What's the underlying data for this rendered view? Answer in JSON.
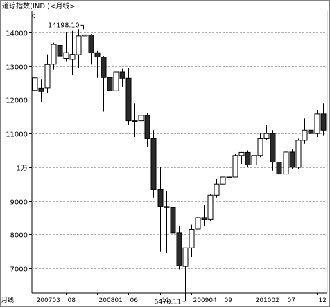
{
  "chart_data": {
    "type": "candlestick",
    "title": "道琼指数(INDI)<月线>",
    "unit_label": "K",
    "x_axis_prefix": "月线",
    "y_ticks": [
      {
        "value": 14000,
        "label": "14000"
      },
      {
        "value": 13000,
        "label": "13000"
      },
      {
        "value": 12000,
        "label": "12000"
      },
      {
        "value": 11000,
        "label": "11000"
      },
      {
        "value": 10000,
        "label": "1万"
      },
      {
        "value": 9000,
        "label": "9000"
      },
      {
        "value": 8000,
        "label": "8000"
      },
      {
        "value": 7000,
        "label": "7000"
      }
    ],
    "x_ticks": [
      {
        "index": 0,
        "label": "200703"
      },
      {
        "index": 5,
        "label": "08"
      },
      {
        "index": 10,
        "label": "200801"
      },
      {
        "index": 15,
        "label": "06"
      },
      {
        "index": 20,
        "label": "11"
      },
      {
        "index": 25,
        "label": "200904"
      },
      {
        "index": 30,
        "label": "09"
      },
      {
        "index": 35,
        "label": "201002"
      },
      {
        "index": 40,
        "label": "07"
      },
      {
        "index": 45,
        "label": "12"
      }
    ],
    "ylim": [
      6300,
      14400
    ],
    "grid": "horizontal-dashed",
    "annotations": [
      {
        "text": "14198.10",
        "index": 8,
        "value": 14198.1,
        "kind": "high"
      },
      {
        "text": "6470.11",
        "index": 24,
        "value": 6470.11,
        "kind": "low"
      }
    ],
    "candles": [
      {
        "o": 12280,
        "h": 12800,
        "l": 12100,
        "c": 12650
      },
      {
        "o": 12350,
        "h": 12620,
        "l": 11950,
        "c": 12250
      },
      {
        "o": 12360,
        "h": 13350,
        "l": 12200,
        "c": 13050
      },
      {
        "o": 13060,
        "h": 13700,
        "l": 12900,
        "c": 13650
      },
      {
        "o": 13620,
        "h": 13800,
        "l": 13200,
        "c": 13300
      },
      {
        "o": 13230,
        "h": 14000,
        "l": 13150,
        "c": 13400
      },
      {
        "o": 13200,
        "h": 14050,
        "l": 12750,
        "c": 13350
      },
      {
        "o": 13340,
        "h": 14100,
        "l": 12950,
        "c": 13900
      },
      {
        "o": 13900,
        "h": 14198,
        "l": 13250,
        "c": 13930
      },
      {
        "o": 13930,
        "h": 13950,
        "l": 13050,
        "c": 13400
      },
      {
        "o": 13400,
        "h": 13450,
        "l": 12650,
        "c": 13270
      },
      {
        "o": 13270,
        "h": 13300,
        "l": 11650,
        "c": 12660
      },
      {
        "o": 12660,
        "h": 12900,
        "l": 11800,
        "c": 12270
      },
      {
        "o": 12270,
        "h": 12800,
        "l": 12100,
        "c": 12830
      },
      {
        "o": 12830,
        "h": 12920,
        "l": 12380,
        "c": 12640
      },
      {
        "o": 12640,
        "h": 12950,
        "l": 11250,
        "c": 11380
      },
      {
        "o": 11380,
        "h": 11900,
        "l": 10900,
        "c": 11380
      },
      {
        "o": 11380,
        "h": 11800,
        "l": 10950,
        "c": 11540
      },
      {
        "o": 11540,
        "h": 11600,
        "l": 10600,
        "c": 10850
      },
      {
        "o": 10850,
        "h": 11100,
        "l": 9100,
        "c": 9330
      },
      {
        "o": 9330,
        "h": 10000,
        "l": 7500,
        "c": 8830
      },
      {
        "o": 8830,
        "h": 9300,
        "l": 7450,
        "c": 8800
      },
      {
        "o": 8800,
        "h": 9100,
        "l": 7950,
        "c": 8050
      },
      {
        "o": 8050,
        "h": 8250,
        "l": 6970,
        "c": 7080
      },
      {
        "o": 7060,
        "h": 7600,
        "l": 6470,
        "c": 7610
      },
      {
        "o": 7610,
        "h": 8300,
        "l": 7350,
        "c": 8160
      },
      {
        "o": 8170,
        "h": 8800,
        "l": 8150,
        "c": 8500
      },
      {
        "o": 8500,
        "h": 8880,
        "l": 8250,
        "c": 8450
      },
      {
        "o": 8450,
        "h": 9200,
        "l": 8400,
        "c": 9170
      },
      {
        "o": 9170,
        "h": 9650,
        "l": 9100,
        "c": 9500
      },
      {
        "o": 9500,
        "h": 9920,
        "l": 9150,
        "c": 9710
      },
      {
        "o": 9710,
        "h": 10100,
        "l": 9650,
        "c": 9710
      },
      {
        "o": 9710,
        "h": 10400,
        "l": 9700,
        "c": 10350
      },
      {
        "o": 10350,
        "h": 10450,
        "l": 10100,
        "c": 10440
      },
      {
        "o": 10440,
        "h": 10500,
        "l": 10000,
        "c": 10070
      },
      {
        "o": 10070,
        "h": 10400,
        "l": 10050,
        "c": 10350
      },
      {
        "o": 10350,
        "h": 11000,
        "l": 10300,
        "c": 10850
      },
      {
        "o": 10850,
        "h": 11250,
        "l": 10800,
        "c": 11000
      },
      {
        "o": 11000,
        "h": 11100,
        "l": 9900,
        "c": 10150
      },
      {
        "o": 10150,
        "h": 10450,
        "l": 9700,
        "c": 9800
      },
      {
        "o": 9800,
        "h": 10500,
        "l": 9600,
        "c": 10450
      },
      {
        "o": 10450,
        "h": 10550,
        "l": 9950,
        "c": 10000
      },
      {
        "o": 10000,
        "h": 10850,
        "l": 9950,
        "c": 10800
      },
      {
        "o": 10800,
        "h": 11450,
        "l": 10700,
        "c": 11100
      },
      {
        "o": 11100,
        "h": 11250,
        "l": 11000,
        "c": 11000
      },
      {
        "o": 11000,
        "h": 11700,
        "l": 10900,
        "c": 11580
      },
      {
        "o": 11580,
        "h": 11900,
        "l": 10950,
        "c": 11100
      }
    ]
  }
}
